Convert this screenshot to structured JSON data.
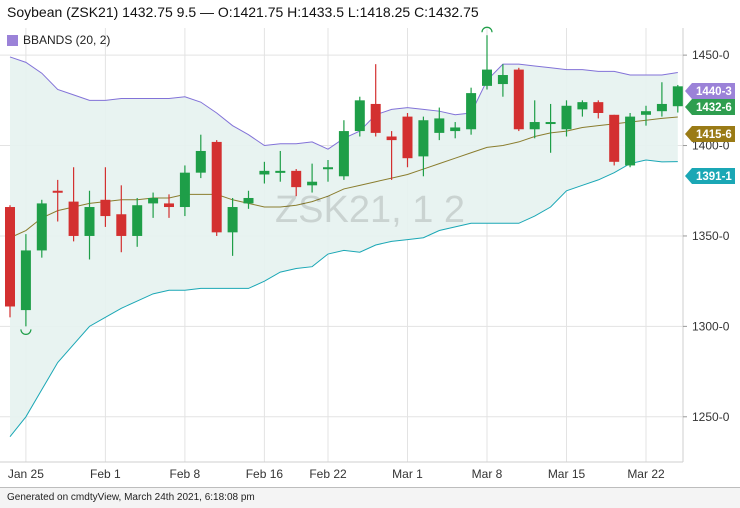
{
  "header": {
    "title": "Soybean (ZSK21) 1432.75 9.5 — O:1421.75 H:1433.5 L:1418.25 C:1432.75"
  },
  "legend": {
    "label": "BBANDS (20, 2)",
    "color": "#9b82d8"
  },
  "watermark": "ZSK21, 1 2",
  "footer": {
    "text": "Generated on cmdtyView, March 24th 2021, 6:18:08 pm"
  },
  "price_tags": [
    {
      "label": "1440-3",
      "value": 1440.375,
      "color": "#9b82d8"
    },
    {
      "label": "1432-6",
      "value": 1432.75,
      "color": "#2e9e4f"
    },
    {
      "label": "1415-6",
      "value": 1415.75,
      "color": "#9a7b16"
    },
    {
      "label": "1391-1",
      "value": 1391.125,
      "color": "#1aa7b5"
    }
  ],
  "colors": {
    "up": "#1e9e48",
    "down": "#d33030",
    "band_fill": "#e6f2ef",
    "upper_band": "#8272d8",
    "middle_band": "#8a7d2e",
    "lower_band": "#1aa7b5",
    "grid": "#e3e3e3"
  },
  "chart_data": {
    "type": "candlestick",
    "title": "Soybean (ZSK21)",
    "ylim": [
      1225,
      1465
    ],
    "y_ticks": [
      1250,
      1300,
      1350,
      1400,
      1450
    ],
    "y_tick_labels": [
      "1250-0",
      "1300-0",
      "1350-0",
      "1400-0",
      "1450-0"
    ],
    "x_ticks": [
      {
        "label": "Jan 25",
        "index": 1
      },
      {
        "label": "Feb 1",
        "index": 6
      },
      {
        "label": "Feb 8",
        "index": 11
      },
      {
        "label": "Feb 16",
        "index": 16
      },
      {
        "label": "Feb 22",
        "index": 20
      },
      {
        "label": "Mar 1",
        "index": 25
      },
      {
        "label": "Mar 8",
        "index": 30
      },
      {
        "label": "Mar 15",
        "index": 35
      },
      {
        "label": "Mar 22",
        "index": 40
      }
    ],
    "candles": [
      {
        "date": "Jan 22",
        "o": 1366,
        "h": 1367,
        "l": 1305,
        "c": 1311
      },
      {
        "date": "Jan 25",
        "o": 1309,
        "h": 1351,
        "l": 1300,
        "c": 1342
      },
      {
        "date": "Jan 26",
        "o": 1342,
        "h": 1370,
        "l": 1338,
        "c": 1368
      },
      {
        "date": "Jan 27",
        "o": 1375,
        "h": 1381,
        "l": 1358,
        "c": 1374
      },
      {
        "date": "Jan 28",
        "o": 1369,
        "h": 1388,
        "l": 1347,
        "c": 1350
      },
      {
        "date": "Jan 29",
        "o": 1350,
        "h": 1375,
        "l": 1337,
        "c": 1366
      },
      {
        "date": "Feb 1",
        "o": 1370,
        "h": 1388,
        "l": 1355,
        "c": 1361
      },
      {
        "date": "Feb 2",
        "o": 1362,
        "h": 1378,
        "l": 1341,
        "c": 1350
      },
      {
        "date": "Feb 3",
        "o": 1350,
        "h": 1371,
        "l": 1344,
        "c": 1367
      },
      {
        "date": "Feb 4",
        "o": 1368,
        "h": 1374,
        "l": 1360,
        "c": 1371
      },
      {
        "date": "Feb 5",
        "o": 1368,
        "h": 1373,
        "l": 1360,
        "c": 1366
      },
      {
        "date": "Feb 8",
        "o": 1366,
        "h": 1389,
        "l": 1361,
        "c": 1385
      },
      {
        "date": "Feb 9",
        "o": 1385,
        "h": 1406,
        "l": 1382,
        "c": 1397
      },
      {
        "date": "Feb 10",
        "o": 1402,
        "h": 1403,
        "l": 1350,
        "c": 1352
      },
      {
        "date": "Feb 11",
        "o": 1352,
        "h": 1371,
        "l": 1339,
        "c": 1366
      },
      {
        "date": "Feb 12",
        "o": 1368,
        "h": 1375,
        "l": 1365,
        "c": 1371
      },
      {
        "date": "Feb 16",
        "o": 1384,
        "h": 1391,
        "l": 1379,
        "c": 1386
      },
      {
        "date": "Feb 17",
        "o": 1385,
        "h": 1397,
        "l": 1380,
        "c": 1386
      },
      {
        "date": "Feb 18",
        "o": 1386,
        "h": 1387,
        "l": 1372,
        "c": 1377
      },
      {
        "date": "Feb 19",
        "o": 1378,
        "h": 1390,
        "l": 1374,
        "c": 1380
      },
      {
        "date": "Feb 22",
        "o": 1387,
        "h": 1392,
        "l": 1380,
        "c": 1388
      },
      {
        "date": "Feb 23",
        "o": 1383,
        "h": 1414,
        "l": 1381,
        "c": 1408
      },
      {
        "date": "Feb 24",
        "o": 1408,
        "h": 1427,
        "l": 1405,
        "c": 1425
      },
      {
        "date": "Feb 25",
        "o": 1423,
        "h": 1445,
        "l": 1405,
        "c": 1407
      },
      {
        "date": "Feb 26",
        "o": 1405,
        "h": 1408,
        "l": 1381,
        "c": 1403
      },
      {
        "date": "Mar 1",
        "o": 1416,
        "h": 1418,
        "l": 1388,
        "c": 1393
      },
      {
        "date": "Mar 2",
        "o": 1394,
        "h": 1416,
        "l": 1383,
        "c": 1414
      },
      {
        "date": "Mar 3",
        "o": 1407,
        "h": 1421,
        "l": 1403,
        "c": 1415
      },
      {
        "date": "Mar 4",
        "o": 1408,
        "h": 1413,
        "l": 1404,
        "c": 1410
      },
      {
        "date": "Mar 5",
        "o": 1409,
        "h": 1432,
        "l": 1406,
        "c": 1429
      },
      {
        "date": "Mar 8",
        "o": 1433,
        "h": 1461,
        "l": 1431,
        "c": 1442
      },
      {
        "date": "Mar 9",
        "o": 1434,
        "h": 1445,
        "l": 1427,
        "c": 1439
      },
      {
        "date": "Mar 10",
        "o": 1442,
        "h": 1443,
        "l": 1408,
        "c": 1409
      },
      {
        "date": "Mar 11",
        "o": 1409,
        "h": 1425,
        "l": 1404,
        "c": 1413
      },
      {
        "date": "Mar 12",
        "o": 1413,
        "h": 1423,
        "l": 1396,
        "c": 1413
      },
      {
        "date": "Mar 15",
        "o": 1409,
        "h": 1425,
        "l": 1405,
        "c": 1422
      },
      {
        "date": "Mar 16",
        "o": 1420,
        "h": 1425,
        "l": 1416,
        "c": 1424
      },
      {
        "date": "Mar 17",
        "o": 1424,
        "h": 1425,
        "l": 1415,
        "c": 1418
      },
      {
        "date": "Mar 18",
        "o": 1417,
        "h": 1417,
        "l": 1389,
        "c": 1391
      },
      {
        "date": "Mar 19",
        "o": 1389,
        "h": 1418,
        "l": 1388,
        "c": 1416
      },
      {
        "date": "Mar 22",
        "o": 1417,
        "h": 1422,
        "l": 1411,
        "c": 1419
      },
      {
        "date": "Mar 23",
        "o": 1419,
        "h": 1435,
        "l": 1416,
        "c": 1423
      },
      {
        "date": "Mar 24",
        "o": 1421.75,
        "h": 1433.5,
        "l": 1418.25,
        "c": 1432.75
      }
    ],
    "bbands": {
      "name": "BBANDS (20, 2)",
      "upper": [
        1449,
        1446,
        1440,
        1431,
        1428,
        1425,
        1425,
        1426,
        1426,
        1426,
        1426,
        1427,
        1424,
        1418,
        1411,
        1406,
        1400,
        1401,
        1401,
        1402,
        1398,
        1404,
        1408,
        1417,
        1420,
        1421,
        1420,
        1419,
        1417,
        1418,
        1436,
        1445,
        1445,
        1444,
        1443,
        1442,
        1442,
        1441,
        1441,
        1439,
        1439,
        1439,
        1440.4
      ],
      "middle": [
        1349,
        1353,
        1360,
        1364,
        1366,
        1368,
        1369,
        1370,
        1370,
        1371,
        1371,
        1373,
        1373,
        1373,
        1370,
        1368,
        1366,
        1366,
        1367,
        1369,
        1372,
        1376,
        1378,
        1380,
        1382,
        1384,
        1387,
        1390,
        1393,
        1396,
        1399,
        1400,
        1402,
        1405,
        1407,
        1408,
        1410,
        1411,
        1412,
        1413,
        1414,
        1415,
        1415.75
      ],
      "lower": [
        1239,
        1250,
        1265,
        1280,
        1290,
        1300,
        1305,
        1310,
        1314,
        1318,
        1320,
        1320,
        1321,
        1321,
        1321,
        1321,
        1325,
        1330,
        1332,
        1333,
        1340,
        1342,
        1341,
        1345,
        1347,
        1348,
        1349,
        1353,
        1355,
        1357,
        1357,
        1357,
        1357,
        1361,
        1366,
        1375,
        1378,
        1381,
        1385,
        1390,
        1392,
        1391,
        1391.1
      ]
    }
  }
}
